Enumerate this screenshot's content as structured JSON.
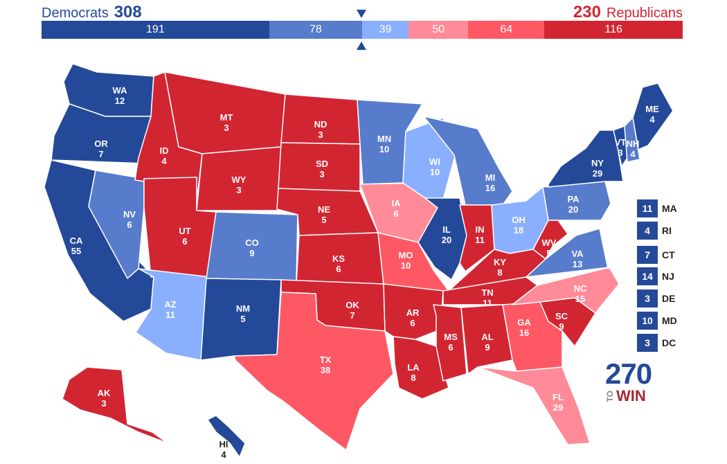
{
  "header": {
    "dem_label": "Democrats",
    "dem_total": "308",
    "rep_label": "Republicans",
    "rep_total": "230"
  },
  "ratings": {
    "safe_dem": "#244999",
    "likely_dem": "#577ccc",
    "lean_dem": "#8aafff",
    "lean_rep": "#ff8b98",
    "likely_rep": "#ff5865",
    "safe_rep": "#d22532"
  },
  "bar": [
    {
      "value": "191",
      "votes": 191,
      "rating": "safe_dem"
    },
    {
      "value": "78",
      "votes": 78,
      "rating": "likely_dem"
    },
    {
      "value": "39",
      "votes": 39,
      "rating": "lean_dem"
    },
    {
      "value": "50",
      "votes": 50,
      "rating": "lean_rep"
    },
    {
      "value": "64",
      "votes": 64,
      "rating": "likely_rep"
    },
    {
      "value": "116",
      "votes": 116,
      "rating": "safe_rep"
    }
  ],
  "states": [
    {
      "abbr": "WA",
      "ev": "12",
      "rating": "safe_dem"
    },
    {
      "abbr": "OR",
      "ev": "7",
      "rating": "safe_dem"
    },
    {
      "abbr": "CA",
      "ev": "55",
      "rating": "safe_dem"
    },
    {
      "abbr": "NV",
      "ev": "6",
      "rating": "likely_dem"
    },
    {
      "abbr": "ID",
      "ev": "4",
      "rating": "safe_rep"
    },
    {
      "abbr": "MT",
      "ev": "3",
      "rating": "safe_rep"
    },
    {
      "abbr": "WY",
      "ev": "3",
      "rating": "safe_rep"
    },
    {
      "abbr": "UT",
      "ev": "6",
      "rating": "safe_rep"
    },
    {
      "abbr": "AZ",
      "ev": "11",
      "rating": "lean_dem"
    },
    {
      "abbr": "CO",
      "ev": "9",
      "rating": "likely_dem"
    },
    {
      "abbr": "NM",
      "ev": "5",
      "rating": "safe_dem"
    },
    {
      "abbr": "ND",
      "ev": "3",
      "rating": "safe_rep"
    },
    {
      "abbr": "SD",
      "ev": "3",
      "rating": "safe_rep"
    },
    {
      "abbr": "NE",
      "ev": "5",
      "rating": "safe_rep"
    },
    {
      "abbr": "KS",
      "ev": "6",
      "rating": "safe_rep"
    },
    {
      "abbr": "OK",
      "ev": "7",
      "rating": "safe_rep"
    },
    {
      "abbr": "TX",
      "ev": "38",
      "rating": "likely_rep"
    },
    {
      "abbr": "MN",
      "ev": "10",
      "rating": "likely_dem"
    },
    {
      "abbr": "IA",
      "ev": "6",
      "rating": "lean_rep"
    },
    {
      "abbr": "MO",
      "ev": "10",
      "rating": "likely_rep"
    },
    {
      "abbr": "AR",
      "ev": "6",
      "rating": "safe_rep"
    },
    {
      "abbr": "LA",
      "ev": "8",
      "rating": "safe_rep"
    },
    {
      "abbr": "WI",
      "ev": "10",
      "rating": "lean_dem"
    },
    {
      "abbr": "IL",
      "ev": "20",
      "rating": "safe_dem"
    },
    {
      "abbr": "MI",
      "ev": "16",
      "rating": "likely_dem"
    },
    {
      "abbr": "IN",
      "ev": "11",
      "rating": "safe_rep"
    },
    {
      "abbr": "OH",
      "ev": "18",
      "rating": "lean_dem"
    },
    {
      "abbr": "KY",
      "ev": "8",
      "rating": "safe_rep"
    },
    {
      "abbr": "TN",
      "ev": "11",
      "rating": "safe_rep"
    },
    {
      "abbr": "MS",
      "ev": "6",
      "rating": "safe_rep"
    },
    {
      "abbr": "AL",
      "ev": "9",
      "rating": "safe_rep"
    },
    {
      "abbr": "GA",
      "ev": "16",
      "rating": "likely_rep"
    },
    {
      "abbr": "FL",
      "ev": "29",
      "rating": "lean_rep"
    },
    {
      "abbr": "SC",
      "ev": "9",
      "rating": "safe_rep"
    },
    {
      "abbr": "NC",
      "ev": "15",
      "rating": "lean_rep"
    },
    {
      "abbr": "VA",
      "ev": "13",
      "rating": "likely_dem"
    },
    {
      "abbr": "WV",
      "ev": "5",
      "rating": "safe_rep"
    },
    {
      "abbr": "PA",
      "ev": "20",
      "rating": "likely_dem"
    },
    {
      "abbr": "NY",
      "ev": "29",
      "rating": "safe_dem"
    },
    {
      "abbr": "VT",
      "ev": "3",
      "rating": "safe_dem"
    },
    {
      "abbr": "NH",
      "ev": "4",
      "rating": "likely_dem"
    },
    {
      "abbr": "ME",
      "ev": "4",
      "rating": "safe_dem"
    },
    {
      "abbr": "AK",
      "ev": "3",
      "rating": "safe_rep"
    },
    {
      "abbr": "HI",
      "ev": "4",
      "rating": "safe_dem"
    }
  ],
  "small_states": [
    {
      "abbr": "MA",
      "ev": "11",
      "rating": "safe_dem"
    },
    {
      "abbr": "RI",
      "ev": "4",
      "rating": "safe_dem"
    },
    {
      "abbr": "CT",
      "ev": "7",
      "rating": "safe_dem"
    },
    {
      "abbr": "NJ",
      "ev": "14",
      "rating": "safe_dem"
    },
    {
      "abbr": "DE",
      "ev": "3",
      "rating": "safe_dem"
    },
    {
      "abbr": "MD",
      "ev": "10",
      "rating": "safe_dem"
    },
    {
      "abbr": "DC",
      "ev": "3",
      "rating": "safe_dem"
    }
  ],
  "logo": {
    "number": "270",
    "to": "TO",
    "win": "WIN"
  }
}
